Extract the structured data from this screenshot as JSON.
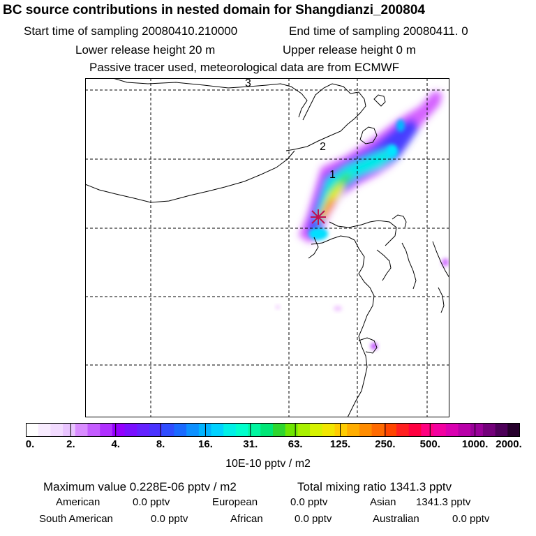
{
  "header": {
    "title": "BC  source contributions in nested domain for Shangdianzi_200804",
    "start_time": "Start time of sampling 20080410.210000",
    "end_time": "End time of sampling 20080411.     0",
    "lower_release": "Lower release height   20 m",
    "upper_release": "Upper release height    0 m",
    "tracer_note": "Passive tracer used, meteorological data are from ECMWF"
  },
  "map": {
    "contour_labels": [
      "1",
      "2",
      "3"
    ],
    "colors": {
      "coast": "#000000",
      "grid": "#000000",
      "plume_low": "#cc66ff",
      "plume_mid": "#00e5e5",
      "plume_high": "#ff8c1a",
      "marker": "#c01050"
    }
  },
  "colorbar": {
    "colors": [
      "#ffffff",
      "#f8ecff",
      "#f2dbff",
      "#e9c4ff",
      "#d98cff",
      "#c45cff",
      "#b030ff",
      "#9400ff",
      "#7a10ff",
      "#6422ff",
      "#4a33ff",
      "#2f4dff",
      "#1a6aff",
      "#0d90ff",
      "#00b3ff",
      "#00d2ff",
      "#00f0e6",
      "#00ffcc",
      "#00f5a0",
      "#00e676",
      "#2ed62e",
      "#6ee600",
      "#a8f000",
      "#d6f200",
      "#f2e600",
      "#ffcc00",
      "#ffad00",
      "#ff8c00",
      "#ff6a00",
      "#ff4500",
      "#ff2020",
      "#ff0040",
      "#ff0080",
      "#f200a0",
      "#d900b0",
      "#b800a8",
      "#990099",
      "#73007a",
      "#4d0059",
      "#26002c"
    ],
    "tick_labels": [
      "0.",
      "2.",
      "4.",
      "8.",
      "16.",
      "31.",
      "63.",
      "125.",
      "250.",
      "500.",
      "1000.",
      "2000."
    ],
    "unit": "10E-10 pptv / m2"
  },
  "summary": {
    "max_value": "Maximum value  0.228E-06 pptv / m2",
    "total_mixing": "Total mixing ratio     1341.3 pptv",
    "regions": [
      {
        "name": "American",
        "value": "0.0 pptv"
      },
      {
        "name": "European",
        "value": "0.0 pptv"
      },
      {
        "name": "Asian",
        "value": "1341.3 pptv"
      },
      {
        "name": "South American",
        "value": "0.0 pptv"
      },
      {
        "name": "African",
        "value": "0.0 pptv"
      },
      {
        "name": "Australian",
        "value": "0.0 pptv"
      }
    ]
  }
}
